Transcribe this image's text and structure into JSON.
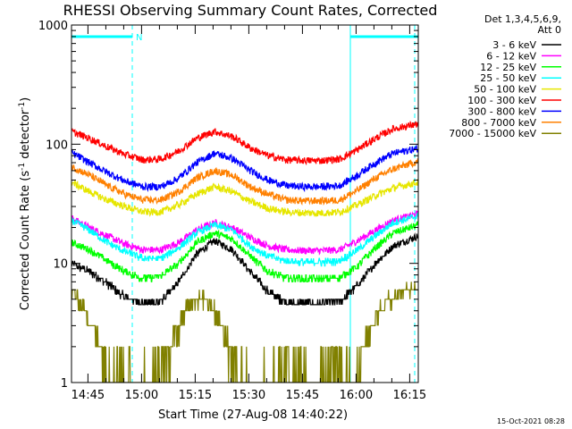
{
  "chart_data": {
    "type": "line",
    "title": "RHESSI Observing Summary Count Rates, Corrected",
    "xlabel": "Start Time (27-Aug-08 14:40:22)",
    "ylabel_prefix": "Corrected Count Rate (s",
    "ylabel_sup1": "-1",
    "ylabel_mid": " detector",
    "ylabel_sup2": "-1",
    "ylabel_suffix": ")",
    "yscale": "log",
    "ylim": [
      1,
      1000
    ],
    "xlim_minutes": [
      0,
      97
    ],
    "y_ticks": [
      {
        "value": 1,
        "label": "1"
      },
      {
        "value": 10,
        "label": "10"
      },
      {
        "value": 100,
        "label": "100"
      },
      {
        "value": 1000,
        "label": "1000"
      }
    ],
    "x_ticks": [
      {
        "minute": 4.6,
        "label": "14:45"
      },
      {
        "minute": 19.6,
        "label": "15:00"
      },
      {
        "minute": 34.6,
        "label": "15:15"
      },
      {
        "minute": 49.6,
        "label": "15:30"
      },
      {
        "minute": 64.6,
        "label": "15:45"
      },
      {
        "minute": 79.6,
        "label": "16:00"
      },
      {
        "minute": 94.6,
        "label": "16:15"
      }
    ],
    "legend": {
      "header": [
        "Det 1,3,4,5,6,9,",
        "Att 0"
      ],
      "placement": "right"
    },
    "annotations": {
      "night_label": "N",
      "night_bars": [
        [
          0,
          17
        ],
        [
          78,
          97
        ]
      ],
      "vlines_minutes": [
        17,
        78,
        96
      ]
    },
    "series": [
      {
        "name": "3 - 6 keV",
        "color": "#000000",
        "x": [
          0,
          5,
          10,
          15,
          20,
          25,
          30,
          35,
          40,
          45,
          50,
          55,
          60,
          65,
          70,
          75,
          80,
          85,
          90,
          97
        ],
        "values": [
          10,
          8.5,
          6.8,
          5.2,
          4.6,
          4.8,
          7,
          12,
          15.5,
          13,
          8.5,
          5.8,
          4.7,
          4.6,
          4.6,
          4.8,
          6.5,
          10,
          14,
          17
        ]
      },
      {
        "name": "6 - 12 keV",
        "color": "#ff00ff",
        "x": [
          0,
          5,
          10,
          15,
          20,
          25,
          30,
          35,
          40,
          45,
          50,
          55,
          60,
          65,
          70,
          75,
          80,
          85,
          90,
          97
        ],
        "values": [
          24,
          20,
          17,
          14.5,
          13,
          13,
          15,
          19,
          22,
          20,
          16.5,
          14,
          13,
          12.8,
          12.8,
          13,
          15.5,
          19,
          23,
          26
        ]
      },
      {
        "name": "12 - 25 keV",
        "color": "#00ff00",
        "x": [
          0,
          5,
          10,
          15,
          20,
          25,
          30,
          35,
          40,
          45,
          50,
          55,
          60,
          65,
          70,
          75,
          80,
          85,
          90,
          97
        ],
        "values": [
          15,
          13,
          10.5,
          8.5,
          7.5,
          7.8,
          10,
          15,
          18,
          16,
          11.5,
          8.5,
          7.6,
          7.4,
          7.4,
          7.6,
          9.5,
          13.5,
          18,
          21
        ]
      },
      {
        "name": "25 - 50 keV",
        "color": "#00ffff",
        "x": [
          0,
          5,
          10,
          15,
          20,
          25,
          30,
          35,
          40,
          45,
          50,
          55,
          60,
          65,
          70,
          75,
          80,
          85,
          90,
          97
        ],
        "values": [
          23,
          19,
          15,
          12.5,
          11,
          11,
          13.5,
          18,
          21,
          19,
          14,
          11.5,
          10.5,
          10.2,
          10.2,
          10.5,
          13,
          17,
          22,
          25
        ]
      },
      {
        "name": "50 - 100 keV",
        "color": "#e6e600",
        "x": [
          0,
          5,
          10,
          15,
          20,
          25,
          30,
          35,
          40,
          45,
          50,
          55,
          60,
          65,
          70,
          75,
          80,
          85,
          90,
          97
        ],
        "values": [
          48,
          40,
          34,
          30,
          27,
          27,
          31,
          38,
          44,
          40,
          33,
          29,
          27,
          26.5,
          26.5,
          27,
          31,
          37,
          43,
          48
        ]
      },
      {
        "name": "100 - 300 keV",
        "color": "#ff0000",
        "x": [
          0,
          5,
          10,
          15,
          20,
          25,
          30,
          35,
          40,
          45,
          50,
          55,
          60,
          65,
          70,
          75,
          80,
          85,
          90,
          97
        ],
        "values": [
          128,
          112,
          95,
          82,
          74,
          75,
          88,
          112,
          128,
          116,
          93,
          80,
          74,
          73,
          73,
          75,
          90,
          112,
          135,
          148
        ]
      },
      {
        "name": "300 - 800 keV",
        "color": "#0000ff",
        "x": [
          0,
          5,
          10,
          15,
          20,
          25,
          30,
          35,
          40,
          45,
          50,
          55,
          60,
          65,
          70,
          75,
          80,
          85,
          90,
          97
        ],
        "values": [
          85,
          70,
          58,
          49,
          44,
          44,
          52,
          70,
          84,
          76,
          60,
          50,
          45,
          44,
          44,
          45,
          55,
          70,
          84,
          92
        ]
      },
      {
        "name": "800 - 7000 keV",
        "color": "#ff8000",
        "x": [
          0,
          5,
          10,
          15,
          20,
          25,
          30,
          35,
          40,
          45,
          50,
          55,
          60,
          65,
          70,
          75,
          80,
          85,
          90,
          97
        ],
        "values": [
          65,
          55,
          45,
          38,
          34,
          34,
          40,
          52,
          60,
          55,
          44,
          38,
          34,
          33.5,
          33.5,
          34,
          41,
          52,
          62,
          72
        ]
      },
      {
        "name": "7000 - 15000 keV",
        "color": "#808000",
        "x": [
          0,
          2,
          4,
          6,
          8,
          10,
          12,
          14,
          16,
          18,
          20,
          22,
          24,
          26,
          28,
          30,
          32,
          34,
          36,
          38,
          40,
          42,
          44,
          46,
          48,
          50,
          52,
          54,
          56,
          58,
          60,
          62,
          64,
          66,
          68,
          70,
          72,
          74,
          76,
          78,
          80,
          82,
          84,
          86,
          88,
          90,
          92,
          94,
          97
        ],
        "values": [
          6,
          5,
          4,
          3,
          2,
          1.5,
          1.5,
          1.2,
          1.2,
          1,
          1,
          1,
          1.2,
          1.5,
          2,
          3,
          4,
          5,
          5,
          5,
          4,
          3,
          2,
          1.5,
          1.2,
          1,
          1,
          1,
          1,
          1.2,
          1.5,
          1.5,
          1.2,
          1,
          1,
          1,
          1.2,
          1.5,
          1.2,
          1,
          1.2,
          2,
          3,
          4,
          5,
          5,
          6,
          6,
          6
        ]
      }
    ]
  },
  "footer_timestamp": "15-Oct-2021 08:28"
}
